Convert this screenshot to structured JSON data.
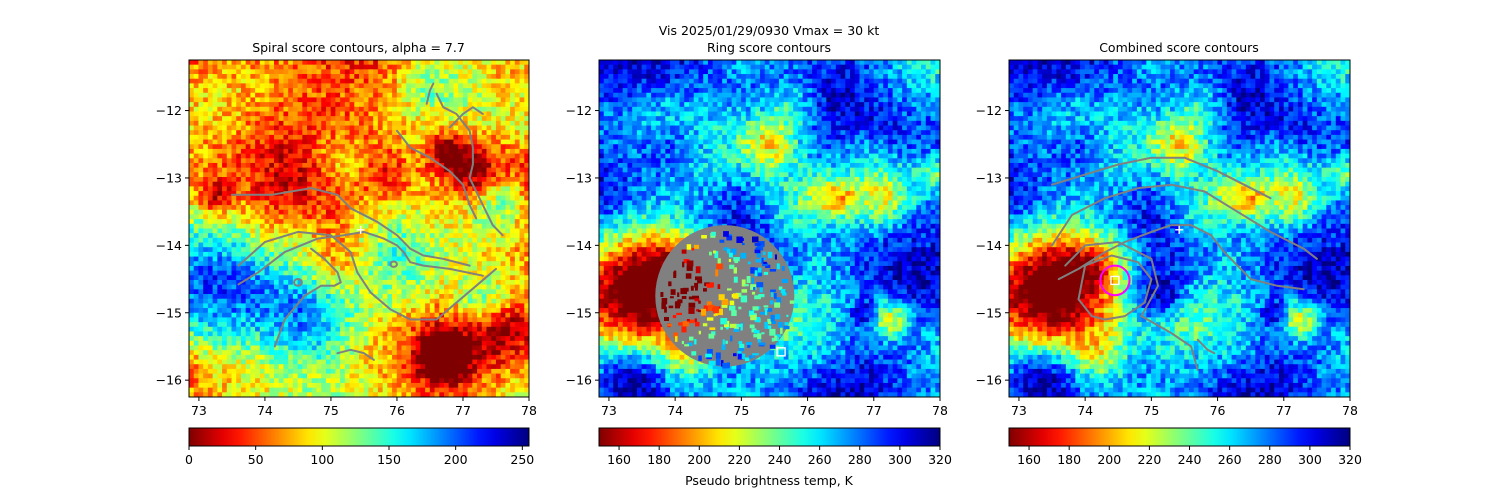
{
  "suptitle": "Vis  2025/01/29/0930    Vmax = 30 kt",
  "colors": {
    "jet": [
      "#00007f",
      "#0000ff",
      "#007fff",
      "#00ffff",
      "#7fff7f",
      "#ffff00",
      "#ff7f00",
      "#ff0000",
      "#7f0000"
    ],
    "contour": "#808080",
    "ring_mask": "#808080",
    "marker_square": "#ffffff",
    "marker_plus": "#ffffff",
    "center_circle": "#ff00ff"
  },
  "chart_data": [
    {
      "type": "heatmap",
      "title": "Spiral score contours, alpha =  7.7",
      "xlim": [
        72.85,
        78.0
      ],
      "ylim": [
        -16.25,
        -11.25
      ],
      "xticks": [
        73,
        74,
        75,
        76,
        77,
        78
      ],
      "yticks": [
        -12,
        -13,
        -14,
        -15,
        -16
      ],
      "xtick_labels": [
        "73",
        "74",
        "75",
        "76",
        "77",
        "78"
      ],
      "ytick_labels": [
        "−12",
        "−13",
        "−14",
        "−15",
        "−16"
      ],
      "colormap": "jet_r",
      "colorbar": {
        "range": [
          0,
          255
        ],
        "ticks": [
          0,
          50,
          100,
          150,
          200,
          250
        ],
        "tick_labels": [
          "0",
          "50",
          "100",
          "150",
          "200",
          "250"
        ],
        "label": ""
      },
      "contours": [
        [
          [
            73.6,
            -14.58
          ],
          [
            73.9,
            -14.4
          ],
          [
            74.3,
            -14.1
          ],
          [
            74.8,
            -13.9
          ],
          [
            75.2,
            -13.85
          ],
          [
            75.5,
            -13.8
          ],
          [
            75.8,
            -13.9
          ],
          [
            76.0,
            -14.0
          ],
          [
            76.1,
            -14.1
          ],
          [
            76.2,
            -14.25
          ],
          [
            76.4,
            -14.3
          ],
          [
            76.8,
            -14.35
          ],
          [
            77.3,
            -14.45
          ]
        ],
        [
          [
            73.5,
            -13.25
          ],
          [
            74.1,
            -13.25
          ],
          [
            74.7,
            -13.15
          ],
          [
            75.1,
            -13.25
          ],
          [
            75.3,
            -13.45
          ],
          [
            75.7,
            -13.65
          ],
          [
            76.0,
            -13.85
          ],
          [
            76.2,
            -14.05
          ],
          [
            76.4,
            -14.15
          ],
          [
            76.7,
            -14.2
          ],
          [
            77.1,
            -14.3
          ]
        ],
        [
          [
            73.6,
            -14.3
          ],
          [
            74.0,
            -13.95
          ],
          [
            74.5,
            -13.8
          ],
          [
            75.0,
            -13.85
          ],
          [
            75.3,
            -14.1
          ],
          [
            75.4,
            -14.4
          ],
          [
            75.6,
            -14.7
          ],
          [
            75.9,
            -14.95
          ],
          [
            76.2,
            -15.1
          ],
          [
            76.6,
            -15.1
          ],
          [
            76.9,
            -14.85
          ],
          [
            77.2,
            -14.6
          ],
          [
            77.5,
            -14.35
          ]
        ],
        [
          [
            74.15,
            -15.5
          ],
          [
            74.3,
            -15.1
          ],
          [
            74.6,
            -14.75
          ],
          [
            74.85,
            -14.6
          ],
          [
            75.05,
            -14.6
          ],
          [
            75.15,
            -14.55
          ],
          [
            75.1,
            -14.4
          ],
          [
            74.9,
            -14.2
          ],
          [
            74.7,
            -14.05
          ]
        ],
        [
          [
            75.1,
            -15.6
          ],
          [
            75.3,
            -15.55
          ],
          [
            75.5,
            -15.6
          ],
          [
            75.65,
            -15.7
          ]
        ],
        [
          [
            76.45,
            -11.9
          ],
          [
            76.5,
            -11.7
          ],
          [
            76.55,
            -11.6
          ]
        ],
        [
          [
            76.6,
            -11.75
          ],
          [
            76.7,
            -11.95
          ],
          [
            76.9,
            -12.05
          ],
          [
            77.1,
            -12.3
          ],
          [
            77.15,
            -12.55
          ],
          [
            77.15,
            -12.8
          ],
          [
            77.1,
            -13.0
          ],
          [
            77.2,
            -13.2
          ],
          [
            77.3,
            -13.4
          ],
          [
            77.45,
            -13.7
          ],
          [
            77.6,
            -13.85
          ]
        ],
        [
          [
            76.8,
            -12.25
          ],
          [
            77.0,
            -12.05
          ],
          [
            77.15,
            -11.95
          ],
          [
            77.3,
            -12.05
          ]
        ],
        [
          [
            76.0,
            -12.3
          ],
          [
            76.2,
            -12.55
          ],
          [
            76.5,
            -12.7
          ],
          [
            76.8,
            -12.9
          ],
          [
            77.0,
            -13.1
          ],
          [
            77.1,
            -13.4
          ],
          [
            77.2,
            -13.6
          ]
        ]
      ],
      "closed_contours": [
        {
          "center": [
            74.5,
            -14.55
          ],
          "rx": 0.06,
          "ry": 0.05
        },
        {
          "center": [
            75.95,
            -14.28
          ],
          "rx": 0.05,
          "ry": 0.04
        }
      ],
      "markers": [
        {
          "type": "plus",
          "x": 75.45,
          "y": -13.77
        }
      ]
    },
    {
      "type": "heatmap",
      "title": "Ring score contours",
      "xlim": [
        72.85,
        78.0
      ],
      "ylim": [
        -16.25,
        -11.25
      ],
      "xticks": [
        73,
        74,
        75,
        76,
        77,
        78
      ],
      "yticks": [
        -12,
        -13,
        -14,
        -15,
        -16
      ],
      "xtick_labels": [
        "73",
        "74",
        "75",
        "76",
        "77",
        "78"
      ],
      "ytick_labels": [
        "−12",
        "−13",
        "−14",
        "−15",
        "−16"
      ],
      "colormap": "jet_r",
      "colorbar": {
        "range": [
          150,
          320
        ],
        "ticks": [
          160,
          180,
          200,
          220,
          240,
          260,
          280,
          300,
          320
        ],
        "tick_labels": [
          "160",
          "180",
          "200",
          "220",
          "240",
          "260",
          "280",
          "300",
          "320"
        ],
        "label": "Pseudo brightness temp, K"
      },
      "ring_region": {
        "center": [
          74.75,
          -14.75
        ],
        "radius_deg": 1.05
      },
      "markers": [
        {
          "type": "square",
          "x": 75.6,
          "y": -15.58
        }
      ]
    },
    {
      "type": "heatmap",
      "title": "Combined score contours",
      "xlim": [
        72.85,
        78.0
      ],
      "ylim": [
        -16.25,
        -11.25
      ],
      "xticks": [
        73,
        74,
        75,
        76,
        77,
        78
      ],
      "yticks": [
        -12,
        -13,
        -14,
        -15,
        -16
      ],
      "xtick_labels": [
        "73",
        "74",
        "75",
        "76",
        "77",
        "78"
      ],
      "ytick_labels": [
        "−12",
        "−13",
        "−14",
        "−15",
        "−16"
      ],
      "colormap": "jet_r",
      "colorbar": {
        "range": [
          150,
          320
        ],
        "ticks": [
          160,
          180,
          200,
          220,
          240,
          260,
          280,
          300,
          320
        ],
        "tick_labels": [
          "160",
          "180",
          "200",
          "220",
          "240",
          "260",
          "280",
          "300",
          "320"
        ],
        "label": ""
      },
      "contours": [
        [
          [
            73.6,
            -14.5
          ],
          [
            73.9,
            -14.35
          ],
          [
            74.3,
            -14.1
          ],
          [
            74.6,
            -13.95
          ],
          [
            75.0,
            -13.8
          ],
          [
            75.3,
            -13.7
          ],
          [
            75.6,
            -13.7
          ],
          [
            75.9,
            -13.85
          ],
          [
            76.1,
            -14.1
          ],
          [
            76.5,
            -14.5
          ],
          [
            76.9,
            -14.6
          ],
          [
            77.3,
            -14.65
          ]
        ],
        [
          [
            73.5,
            -14.0
          ],
          [
            73.8,
            -13.55
          ],
          [
            74.3,
            -13.3
          ],
          [
            74.8,
            -13.15
          ],
          [
            75.3,
            -13.1
          ],
          [
            75.8,
            -13.2
          ],
          [
            76.3,
            -13.5
          ],
          [
            76.8,
            -13.8
          ],
          [
            77.3,
            -14.05
          ],
          [
            77.5,
            -14.2
          ]
        ],
        [
          [
            73.5,
            -13.1
          ],
          [
            74.0,
            -12.95
          ],
          [
            74.5,
            -12.8
          ],
          [
            75.0,
            -12.7
          ],
          [
            75.5,
            -12.7
          ],
          [
            76.0,
            -12.9
          ],
          [
            76.4,
            -13.1
          ],
          [
            76.8,
            -13.3
          ]
        ],
        [
          [
            74.1,
            -15.05
          ],
          [
            73.9,
            -14.8
          ],
          [
            74.0,
            -14.3
          ],
          [
            74.4,
            -14.15
          ],
          [
            74.8,
            -14.25
          ],
          [
            75.0,
            -14.5
          ],
          [
            74.9,
            -14.85
          ],
          [
            74.6,
            -15.05
          ],
          [
            74.3,
            -15.1
          ],
          [
            74.1,
            -15.05
          ]
        ],
        [
          [
            74.85,
            -15.05
          ],
          [
            75.1,
            -14.6
          ],
          [
            75.0,
            -14.2
          ],
          [
            74.5,
            -13.95
          ],
          [
            74.0,
            -14.0
          ],
          [
            73.7,
            -14.3
          ]
        ],
        [
          [
            74.85,
            -15.05
          ],
          [
            75.3,
            -15.3
          ],
          [
            75.6,
            -15.5
          ],
          [
            75.7,
            -15.85
          ]
        ],
        [
          [
            75.7,
            -15.4
          ],
          [
            75.85,
            -15.55
          ],
          [
            75.95,
            -15.6
          ]
        ]
      ],
      "center_circle": {
        "x": 74.45,
        "y": -14.52,
        "radius_deg": 0.22
      },
      "markers": [
        {
          "type": "square",
          "x": 74.45,
          "y": -14.52
        },
        {
          "type": "plus",
          "x": 75.42,
          "y": -13.77
        }
      ]
    }
  ]
}
